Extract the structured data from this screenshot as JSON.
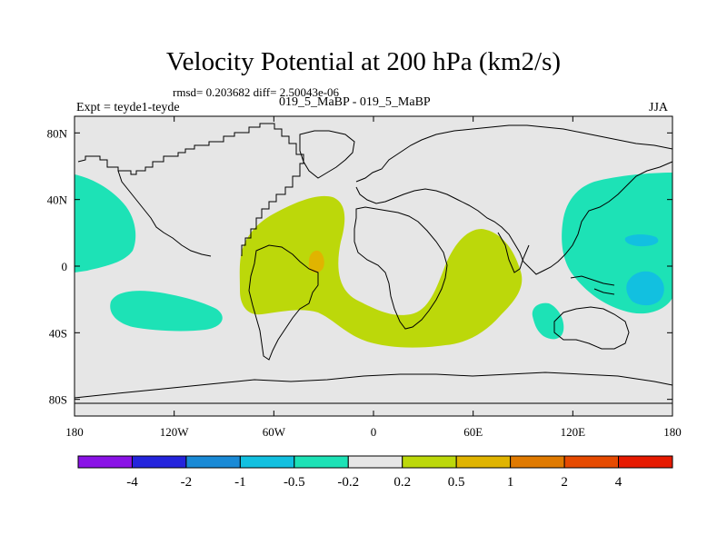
{
  "chart_data": {
    "type": "contour_map",
    "title": "Velocity Potential at 200 hPa (km2/s)",
    "stats_line": "rmsd= 0.203682 diff= 2.50043e-06",
    "experiment_label": "Expt = teyde1-teyde",
    "cases_label": "019_5_MaBP - 019_5_MaBP",
    "season": "JJA",
    "xaxis": {
      "range": [
        -180,
        180
      ],
      "ticks": [
        {
          "value": -180,
          "label": "180"
        },
        {
          "value": -120,
          "label": "120W"
        },
        {
          "value": -60,
          "label": "60W"
        },
        {
          "value": 0,
          "label": "0"
        },
        {
          "value": 60,
          "label": "60E"
        },
        {
          "value": 120,
          "label": "120E"
        },
        {
          "value": 180,
          "label": "180"
        }
      ]
    },
    "yaxis": {
      "range": [
        -90,
        90
      ],
      "ticks": [
        {
          "value": 80,
          "label": "80N"
        },
        {
          "value": 40,
          "label": "40N"
        },
        {
          "value": 0,
          "label": "0"
        },
        {
          "value": -40,
          "label": "40S"
        },
        {
          "value": -80,
          "label": "80S"
        }
      ]
    },
    "colorbar": {
      "colors": [
        "#8a12e6",
        "#2424dc",
        "#1a8ad6",
        "#12c0e0",
        "#1de2b6",
        "#e6e6e6",
        "#bcd80a",
        "#e0b400",
        "#e07a00",
        "#e64a00",
        "#e61a00"
      ],
      "labels": [
        "-4",
        "-2",
        "-1",
        "-0.5",
        "-0.2",
        "0.2",
        "0.5",
        "1",
        "2",
        "4"
      ]
    },
    "shaded_regions": [
      {
        "name": "positive-high-americas-africa",
        "level": "0.2 to 0.5",
        "color": "#bcd80a"
      },
      {
        "name": "positive-peak-south-america",
        "level": "0.5 to 1",
        "color": "#e0b400"
      },
      {
        "name": "negative-north-pacific",
        "level": "-0.5 to -0.2",
        "color": "#1de2b6"
      },
      {
        "name": "negative-south-pacific",
        "level": "-0.5 to -0.2",
        "color": "#1de2b6"
      },
      {
        "name": "negative-west-pacific",
        "level": "-0.5 to -0.2",
        "color": "#1de2b6"
      },
      {
        "name": "negative-west-pacific-core",
        "level": "-1 to -0.5",
        "color": "#12c0e0"
      },
      {
        "name": "negative-indian-ocean",
        "level": "-0.5 to -0.2",
        "color": "#1de2b6"
      }
    ]
  }
}
